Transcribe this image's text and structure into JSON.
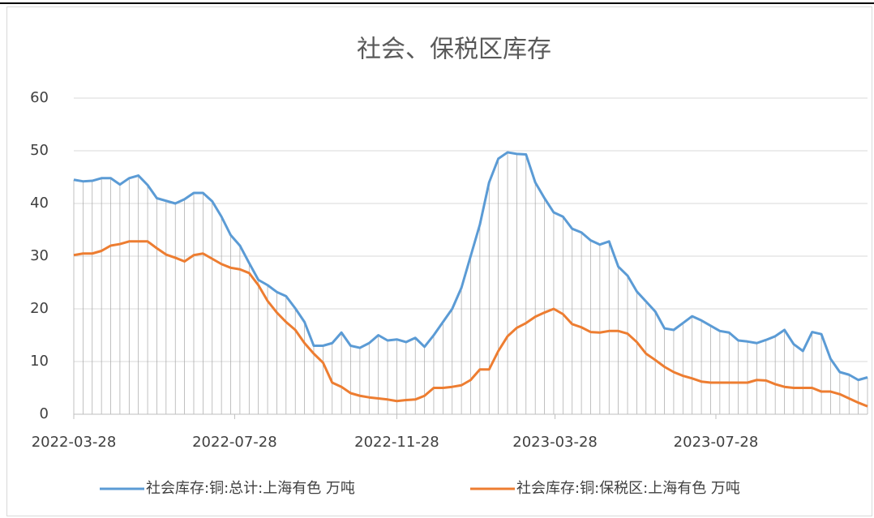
{
  "chart_data": {
    "type": "line",
    "title": "社会、保税区库存",
    "x": [
      "2022-03-28",
      "2022-04-04",
      "2022-04-11",
      "2022-04-18",
      "2022-04-25",
      "2022-05-02",
      "2022-05-09",
      "2022-05-16",
      "2022-05-23",
      "2022-05-30",
      "2022-06-06",
      "2022-06-13",
      "2022-06-20",
      "2022-06-27",
      "2022-07-04",
      "2022-07-11",
      "2022-07-18",
      "2022-07-25",
      "2022-08-01",
      "2022-08-08",
      "2022-08-15",
      "2022-08-22",
      "2022-08-29",
      "2022-09-05",
      "2022-09-12",
      "2022-09-19",
      "2022-09-26",
      "2022-10-03",
      "2022-10-10",
      "2022-10-17",
      "2022-10-24",
      "2022-10-31",
      "2022-11-07",
      "2022-11-14",
      "2022-11-21",
      "2022-11-28",
      "2022-12-05",
      "2022-12-12",
      "2022-12-19",
      "2022-12-26",
      "2023-01-02",
      "2023-01-09",
      "2023-01-16",
      "2023-01-23",
      "2023-01-30",
      "2023-02-06",
      "2023-02-13",
      "2023-02-20",
      "2023-02-27",
      "2023-03-06",
      "2023-03-13",
      "2023-03-20",
      "2023-03-27",
      "2023-04-03",
      "2023-04-10",
      "2023-04-17",
      "2023-04-24",
      "2023-05-01",
      "2023-05-08",
      "2023-05-15",
      "2023-05-22",
      "2023-05-29",
      "2023-06-05",
      "2023-06-12",
      "2023-06-19",
      "2023-06-26",
      "2023-07-03",
      "2023-07-10",
      "2023-07-17",
      "2023-07-24",
      "2023-07-31",
      "2023-08-07",
      "2023-08-14",
      "2023-08-21",
      "2023-08-28",
      "2023-09-04",
      "2023-09-11",
      "2023-09-18",
      "2023-09-25",
      "2023-10-02",
      "2023-10-09",
      "2023-10-16",
      "2023-10-23",
      "2023-10-30",
      "2023-11-06",
      "2023-11-13",
      "2023-11-20"
    ],
    "series": [
      {
        "name": "社会库存:铜:总计:上海有色 万吨",
        "color": "#5b9bd5",
        "values": [
          44.5,
          44.2,
          44.3,
          44.8,
          44.8,
          43.6,
          44.8,
          45.3,
          43.5,
          41,
          40.5,
          40,
          40.8,
          42,
          42,
          40.4,
          37.5,
          34,
          32,
          28.7,
          25.5,
          24.5,
          23.2,
          22.4,
          20.1,
          17.5,
          13,
          13,
          13.5,
          15.5,
          13,
          12.6,
          13.5,
          15,
          14,
          14.2,
          13.7,
          14.5,
          12.8,
          15,
          17.5,
          20,
          24,
          30,
          36,
          44,
          48.5,
          49.7,
          49.4,
          49.3,
          44,
          41,
          38.3,
          37.5,
          35.2,
          34.5,
          33,
          32.2,
          32.8,
          28,
          26.3,
          23.3,
          21.4,
          19.5,
          16.3,
          16,
          17.3,
          18.6,
          17.8,
          16.8,
          15.8,
          15.5,
          14,
          13.8,
          13.5,
          14.1,
          14.8,
          16,
          13.3,
          12,
          15.6,
          15.2,
          10.5,
          8,
          7.5,
          6.5,
          7
        ]
      },
      {
        "name": "社会库存:铜:保税区:上海有色 万吨",
        "color": "#ed7d31",
        "values": [
          30.2,
          30.5,
          30.5,
          31,
          32,
          32.3,
          32.8,
          32.8,
          32.8,
          31.5,
          30.3,
          29.7,
          29,
          30.2,
          30.5,
          29.5,
          28.5,
          27.8,
          27.5,
          26.8,
          24.5,
          21.5,
          19.3,
          17.5,
          16,
          13.5,
          11.5,
          9.8,
          6,
          5.2,
          4,
          3.5,
          3.2,
          3,
          2.8,
          2.5,
          2.7,
          2.8,
          3.5,
          5,
          5,
          5.2,
          5.5,
          6.5,
          8.5,
          8.5,
          12,
          14.8,
          16.4,
          17.3,
          18.5,
          19.3,
          20,
          19,
          17.1,
          16.5,
          15.6,
          15.5,
          15.8,
          15.8,
          15.3,
          13.7,
          11.5,
          10.3,
          9,
          8,
          7.3,
          6.8,
          6.2,
          6,
          6,
          6,
          6,
          6,
          6.5,
          6.4,
          5.7,
          5.2,
          5,
          5,
          5,
          4.3,
          4.3,
          3.8,
          3,
          2.2,
          1.5
        ]
      }
    ],
    "xlim": [
      "2022-03-28",
      "2023-11-20"
    ],
    "xticks": [
      "2022-03-28",
      "2022-07-28",
      "2022-11-28",
      "2023-03-28",
      "2023-07-28"
    ],
    "ylim": [
      0,
      60
    ],
    "yticks": [
      0,
      10,
      20,
      30,
      40,
      50,
      60
    ],
    "grid": true,
    "legend": "bottom"
  }
}
